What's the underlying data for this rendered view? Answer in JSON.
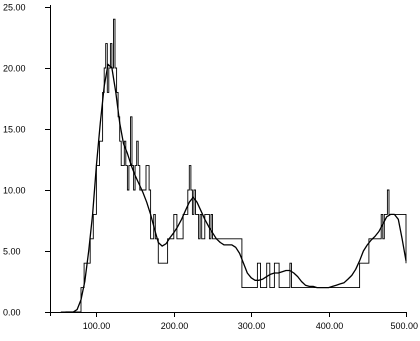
{
  "chart_data": {
    "type": "line",
    "title": "",
    "xlabel": "",
    "ylabel": "",
    "xlim": [
      40,
      500
    ],
    "ylim": [
      0,
      25
    ],
    "grid": false,
    "legend": "none",
    "x_ticks": [
      100,
      200,
      300,
      400,
      500
    ],
    "x_tick_labels": [
      "100.00",
      "200.00",
      "300.00",
      "400.00",
      "500.00"
    ],
    "y_ticks": [
      0,
      5,
      10,
      15,
      20,
      25
    ],
    "y_tick_labels": [
      "0.00",
      "5.00",
      "10.00",
      "15.00",
      "20.00",
      "25.00"
    ],
    "series": [
      {
        "style": "step",
        "x": [
          54,
          64,
          76,
          80,
          84,
          88,
          92,
          96,
          100,
          104,
          108,
          110,
          112,
          114,
          116,
          118,
          120,
          122,
          124,
          126,
          128,
          130,
          132,
          134,
          136,
          138,
          140,
          142,
          144,
          146,
          148,
          150,
          152,
          154,
          156,
          160,
          164,
          168,
          170,
          174,
          176,
          178,
          180,
          184,
          188,
          192,
          196,
          200,
          204,
          208,
          212,
          216,
          218,
          220,
          222,
          224,
          226,
          228,
          230,
          232,
          234,
          236,
          240,
          244,
          246,
          248,
          250,
          256,
          260,
          264,
          268,
          272,
          276,
          280,
          284,
          288,
          290,
          292,
          296,
          300,
          304,
          308,
          312,
          316,
          318,
          320,
          324,
          328,
          330,
          332,
          336,
          340,
          344,
          348,
          350,
          352,
          356,
          360,
          364,
          368,
          372,
          376,
          380,
          384,
          388,
          392,
          396,
          400,
          404,
          408,
          412,
          416,
          420,
          424,
          428,
          432,
          436,
          440,
          444,
          448,
          452,
          456,
          460,
          464,
          468,
          470,
          472,
          474,
          476,
          478,
          480,
          484,
          488,
          492,
          496,
          500
        ],
        "y": [
          0,
          0,
          0,
          2,
          4,
          4,
          6,
          8,
          12,
          14,
          18,
          20,
          22,
          18,
          20,
          22,
          20,
          24,
          20,
          18,
          16,
          14,
          12,
          12,
          14,
          12,
          10,
          12,
          16,
          12,
          10,
          12,
          14,
          12,
          10,
          10,
          12,
          10,
          6,
          8,
          6,
          6,
          4,
          4,
          4,
          6,
          6,
          8,
          6,
          6,
          8,
          8,
          10,
          12,
          10,
          8,
          10,
          8,
          8,
          6,
          8,
          6,
          8,
          8,
          6,
          8,
          6,
          6,
          6,
          6,
          6,
          6,
          6,
          6,
          6,
          2,
          2,
          2,
          2,
          2,
          2,
          4,
          2,
          2,
          2,
          4,
          2,
          2,
          4,
          4,
          2,
          2,
          2,
          2,
          4,
          2,
          2,
          2,
          2,
          2,
          2,
          2,
          2,
          2,
          2,
          2,
          2,
          2,
          2,
          2,
          2,
          2,
          2,
          2,
          2,
          2,
          2,
          4,
          4,
          4,
          6,
          6,
          6,
          6,
          8,
          6,
          8,
          8,
          10,
          8,
          8,
          8,
          8,
          8,
          8,
          4
        ]
      },
      {
        "style": "smooth",
        "x": [
          60,
          70,
          75,
          80,
          85,
          90,
          95,
          100,
          105,
          110,
          115,
          120,
          125,
          130,
          135,
          140,
          145,
          150,
          155,
          160,
          165,
          170,
          175,
          180,
          185,
          190,
          195,
          200,
          205,
          210,
          215,
          220,
          225,
          230,
          235,
          240,
          245,
          250,
          255,
          260,
          265,
          270,
          275,
          280,
          285,
          290,
          295,
          300,
          305,
          310,
          315,
          320,
          325,
          330,
          335,
          340,
          345,
          350,
          355,
          360,
          365,
          370,
          375,
          380,
          385,
          390,
          395,
          400,
          405,
          410,
          415,
          420,
          425,
          430,
          435,
          440,
          445,
          450,
          455,
          460,
          465,
          470,
          475,
          480,
          485,
          490,
          495,
          500
        ],
        "y": [
          0,
          0,
          0.2,
          1.0,
          2.5,
          5.0,
          8.0,
          12.0,
          15.5,
          18.5,
          20.3,
          20.0,
          18.0,
          15.5,
          13.8,
          13.0,
          12.0,
          11.2,
          10.5,
          9.8,
          9.0,
          8.0,
          6.8,
          5.7,
          5.4,
          5.6,
          6.1,
          6.5,
          7.0,
          7.6,
          8.3,
          9.0,
          9.4,
          9.0,
          8.3,
          7.6,
          7.0,
          6.5,
          6.0,
          5.7,
          5.5,
          5.5,
          5.5,
          5.3,
          4.8,
          4.0,
          3.2,
          2.8,
          2.6,
          2.6,
          2.7,
          2.9,
          3.1,
          3.2,
          3.2,
          3.3,
          3.4,
          3.4,
          3.2,
          2.9,
          2.5,
          2.2,
          2.1,
          2.1,
          2.0,
          2.0,
          2.0,
          2.0,
          2.1,
          2.2,
          2.3,
          2.4,
          2.7,
          3.0,
          3.5,
          4.2,
          5.0,
          5.5,
          5.9,
          6.2,
          6.6,
          7.2,
          7.8,
          8.0,
          8.0,
          7.6,
          6.0,
          4.2
        ]
      }
    ]
  }
}
